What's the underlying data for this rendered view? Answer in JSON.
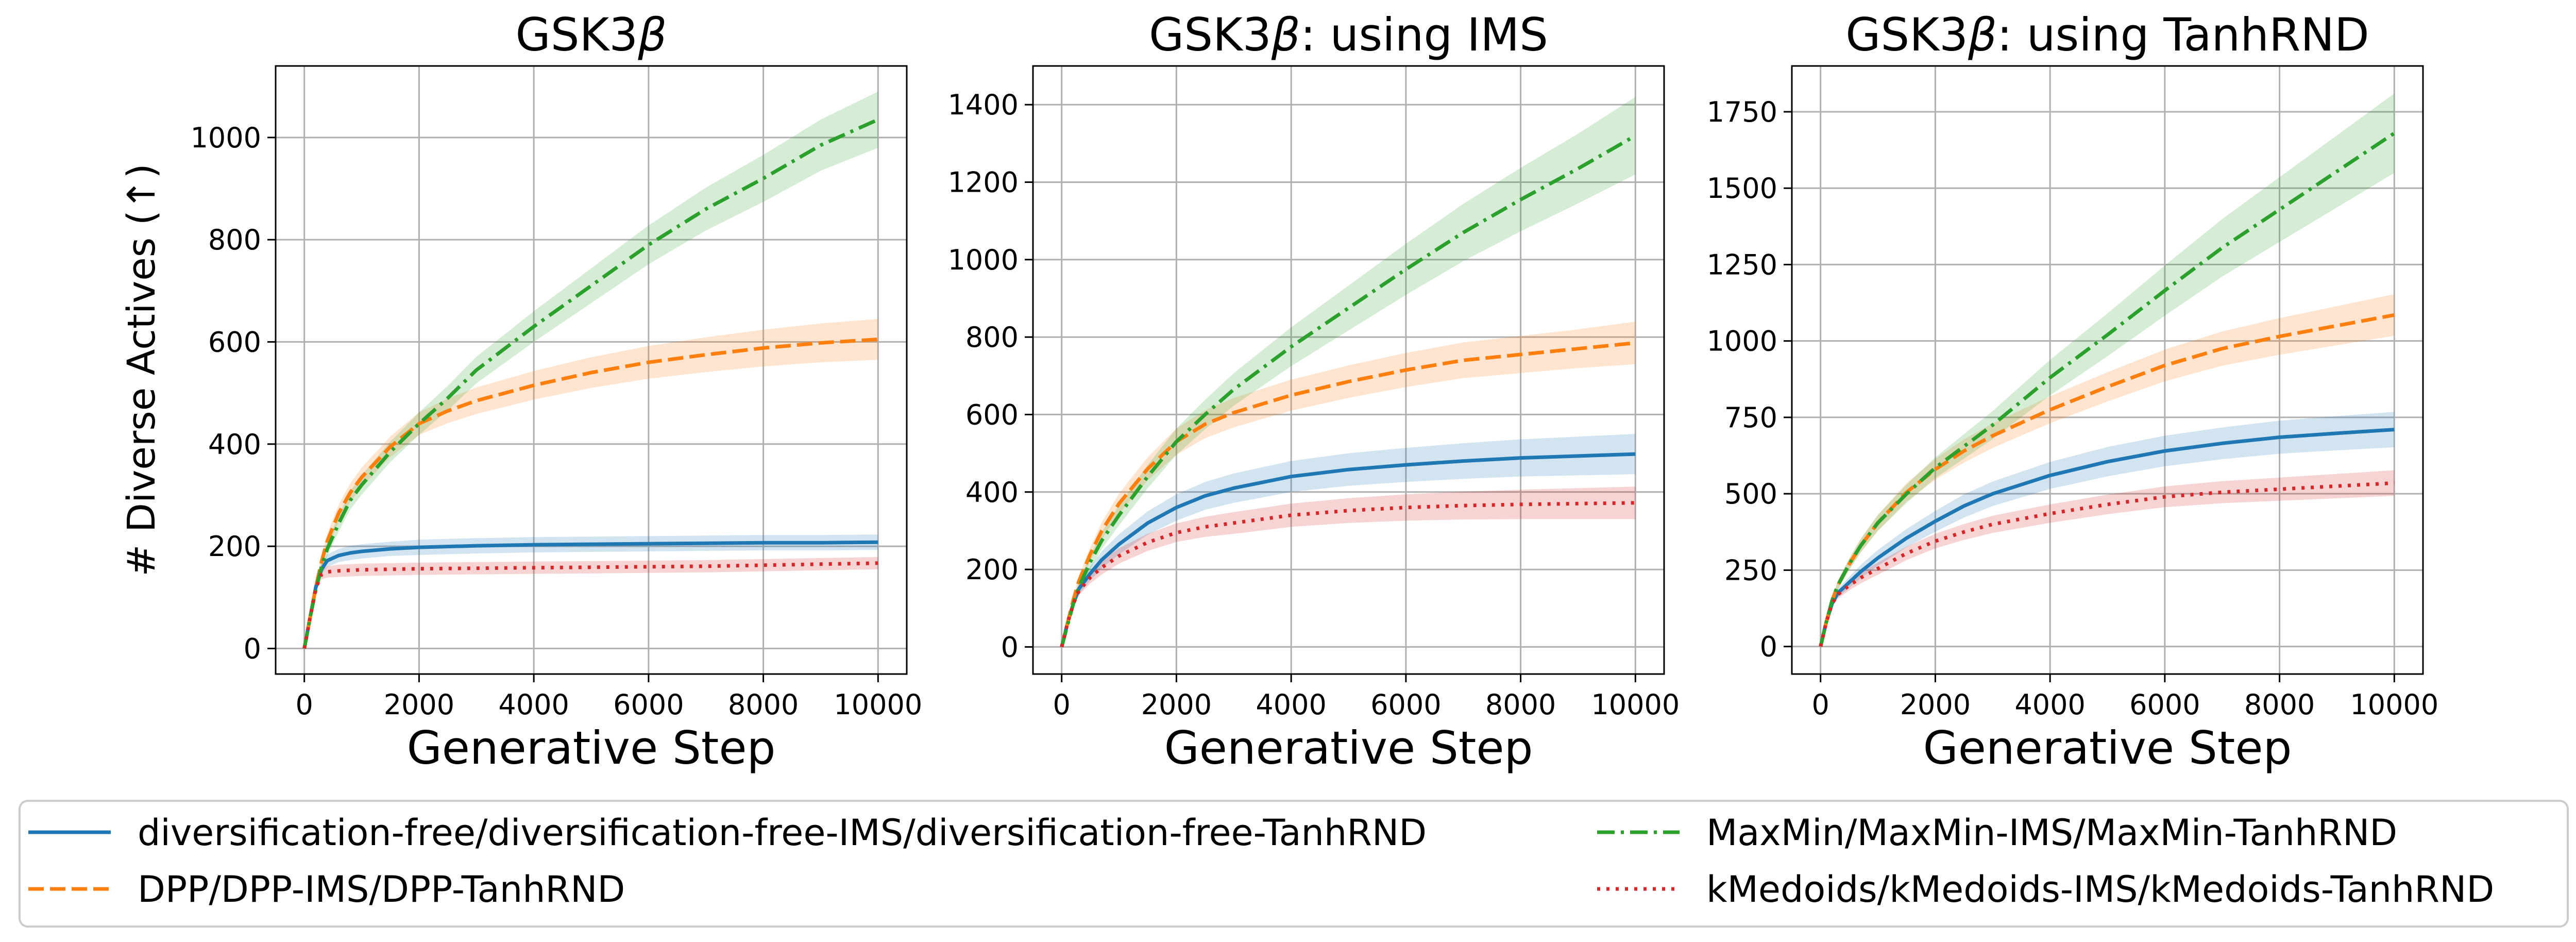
{
  "chart_data": [
    {
      "type": "line",
      "title": "GSK3β",
      "title_parts": [
        "GSK3",
        "β"
      ],
      "xlabel": "Generative Step",
      "ylabel": "# Diverse Actives (↑)",
      "xlim": [
        -500,
        10500
      ],
      "ylim": [
        -50,
        1140
      ],
      "xticks": [
        0,
        2000,
        4000,
        6000,
        8000,
        10000
      ],
      "yticks": [
        0,
        200,
        400,
        600,
        800,
        1000
      ],
      "grid": true,
      "series": [
        {
          "name": "diversification-free",
          "color": "#1f77b4",
          "style": "solid",
          "x": [
            0,
            100,
            200,
            300,
            400,
            600,
            800,
            1000,
            1500,
            2000,
            3000,
            4000,
            5000,
            6000,
            7000,
            8000,
            9000,
            10000
          ],
          "y": [
            0,
            60,
            120,
            155,
            172,
            182,
            187,
            190,
            195,
            198,
            201,
            203,
            204,
            205,
            206,
            207,
            207,
            208
          ],
          "band": [
            0,
            5,
            8,
            10,
            12,
            13,
            14,
            14,
            14,
            15,
            15,
            15,
            15,
            15,
            15,
            15,
            15,
            15
          ]
        },
        {
          "name": "DPP",
          "color": "#ff7f0e",
          "style": "dashed",
          "x": [
            0,
            100,
            200,
            300,
            400,
            600,
            800,
            1000,
            1500,
            2000,
            2500,
            3000,
            4000,
            5000,
            6000,
            7000,
            8000,
            9000,
            10000
          ],
          "y": [
            0,
            60,
            120,
            170,
            210,
            265,
            305,
            335,
            395,
            440,
            465,
            485,
            515,
            540,
            560,
            575,
            588,
            598,
            605
          ],
          "band": [
            0,
            6,
            10,
            13,
            15,
            17,
            18,
            19,
            20,
            22,
            24,
            26,
            28,
            30,
            32,
            34,
            36,
            38,
            40
          ]
        },
        {
          "name": "MaxMin",
          "color": "#2ca02c",
          "style": "dashdot",
          "x": [
            0,
            100,
            200,
            300,
            400,
            600,
            800,
            1000,
            1500,
            2000,
            2500,
            3000,
            4000,
            5000,
            6000,
            7000,
            8000,
            9000,
            10000
          ],
          "y": [
            0,
            60,
            115,
            160,
            195,
            245,
            290,
            320,
            385,
            440,
            490,
            545,
            630,
            710,
            790,
            860,
            920,
            985,
            1035
          ],
          "band": [
            0,
            6,
            10,
            12,
            14,
            16,
            18,
            19,
            20,
            22,
            24,
            26,
            30,
            34,
            38,
            42,
            46,
            50,
            55
          ]
        },
        {
          "name": "kMedoids",
          "color": "#d62728",
          "style": "dotted",
          "x": [
            0,
            100,
            200,
            300,
            400,
            600,
            800,
            1000,
            1500,
            2000,
            3000,
            4000,
            5000,
            6000,
            7000,
            8000,
            9000,
            10000
          ],
          "y": [
            0,
            60,
            118,
            145,
            150,
            152,
            153,
            154,
            155,
            156,
            157,
            158,
            159,
            160,
            161,
            163,
            165,
            167
          ],
          "band": [
            0,
            5,
            8,
            10,
            11,
            12,
            12,
            12,
            12,
            12,
            12,
            12,
            12,
            12,
            12,
            12,
            12,
            12
          ]
        }
      ]
    },
    {
      "type": "line",
      "title": "GSK3β: using IMS",
      "title_parts": [
        "GSK3",
        "β",
        ": using IMS"
      ],
      "xlabel": "Generative Step",
      "ylabel": "",
      "xlim": [
        -500,
        10500
      ],
      "ylim": [
        -70,
        1500
      ],
      "xticks": [
        0,
        2000,
        4000,
        6000,
        8000,
        10000
      ],
      "yticks": [
        0,
        200,
        400,
        600,
        800,
        1000,
        1200,
        1400
      ],
      "grid": true,
      "series": [
        {
          "name": "diversification-free-IMS",
          "color": "#1f77b4",
          "style": "solid",
          "x": [
            0,
            100,
            200,
            300,
            500,
            700,
            1000,
            1500,
            2000,
            2500,
            3000,
            4000,
            5000,
            6000,
            7000,
            8000,
            9000,
            10000
          ],
          "y": [
            0,
            60,
            110,
            150,
            190,
            225,
            265,
            320,
            360,
            390,
            410,
            440,
            458,
            470,
            480,
            488,
            493,
            498
          ],
          "band": [
            0,
            6,
            10,
            14,
            18,
            22,
            26,
            30,
            34,
            36,
            38,
            40,
            42,
            44,
            46,
            48,
            50,
            52
          ]
        },
        {
          "name": "DPP-IMS",
          "color": "#ff7f0e",
          "style": "dashed",
          "x": [
            0,
            100,
            200,
            300,
            500,
            700,
            1000,
            1500,
            2000,
            2500,
            3000,
            4000,
            5000,
            6000,
            7000,
            8000,
            9000,
            10000
          ],
          "y": [
            0,
            60,
            120,
            170,
            240,
            300,
            370,
            460,
            530,
            575,
            605,
            650,
            685,
            715,
            740,
            755,
            770,
            785
          ],
          "band": [
            0,
            6,
            10,
            14,
            18,
            22,
            26,
            30,
            34,
            36,
            38,
            40,
            42,
            44,
            46,
            48,
            50,
            55
          ]
        },
        {
          "name": "MaxMin-IMS",
          "color": "#2ca02c",
          "style": "dashdot",
          "x": [
            0,
            100,
            200,
            300,
            500,
            700,
            1000,
            1500,
            2000,
            2500,
            3000,
            4000,
            5000,
            6000,
            7000,
            8000,
            9000,
            10000
          ],
          "y": [
            0,
            55,
            110,
            155,
            220,
            275,
            340,
            440,
            530,
            600,
            665,
            775,
            875,
            975,
            1070,
            1155,
            1235,
            1320
          ],
          "band": [
            0,
            6,
            10,
            14,
            18,
            22,
            26,
            30,
            34,
            38,
            42,
            50,
            58,
            66,
            74,
            82,
            90,
            100
          ]
        },
        {
          "name": "kMedoids-IMS",
          "color": "#d62728",
          "style": "dotted",
          "x": [
            0,
            100,
            200,
            300,
            500,
            700,
            1000,
            1500,
            2000,
            2500,
            3000,
            4000,
            5000,
            6000,
            7000,
            8000,
            9000,
            10000
          ],
          "y": [
            0,
            60,
            110,
            145,
            180,
            205,
            235,
            270,
            295,
            310,
            320,
            340,
            352,
            360,
            365,
            368,
            370,
            372
          ],
          "band": [
            0,
            5,
            8,
            12,
            16,
            18,
            20,
            22,
            24,
            26,
            28,
            30,
            32,
            34,
            36,
            38,
            40,
            42
          ]
        }
      ]
    },
    {
      "type": "line",
      "title": "GSK3β: using TanhRND",
      "title_parts": [
        "GSK3",
        "β",
        ": using TanhRND"
      ],
      "xlabel": "Generative Step",
      "ylabel": "",
      "xlim": [
        -500,
        10500
      ],
      "ylim": [
        -90,
        1900
      ],
      "xticks": [
        0,
        2000,
        4000,
        6000,
        8000,
        10000
      ],
      "yticks": [
        0,
        250,
        500,
        750,
        1000,
        1250,
        1500,
        1750
      ],
      "grid": true,
      "series": [
        {
          "name": "diversification-free-TanhRND",
          "color": "#1f77b4",
          "style": "solid",
          "x": [
            0,
            100,
            200,
            300,
            500,
            700,
            1000,
            1500,
            2000,
            2500,
            3000,
            4000,
            5000,
            6000,
            7000,
            8000,
            9000,
            10000
          ],
          "y": [
            0,
            80,
            140,
            175,
            210,
            245,
            290,
            355,
            410,
            460,
            500,
            560,
            605,
            640,
            665,
            685,
            698,
            710
          ],
          "band": [
            0,
            6,
            10,
            14,
            18,
            22,
            26,
            30,
            34,
            38,
            40,
            44,
            48,
            50,
            52,
            54,
            56,
            58
          ]
        },
        {
          "name": "DPP-TanhRND",
          "color": "#ff7f0e",
          "style": "dashed",
          "x": [
            0,
            100,
            200,
            300,
            500,
            700,
            1000,
            1500,
            2000,
            2500,
            3000,
            4000,
            5000,
            6000,
            7000,
            8000,
            9000,
            10000
          ],
          "y": [
            0,
            80,
            150,
            200,
            270,
            330,
            405,
            505,
            580,
            640,
            690,
            775,
            850,
            920,
            975,
            1015,
            1050,
            1085
          ],
          "band": [
            0,
            6,
            10,
            14,
            18,
            22,
            26,
            30,
            34,
            38,
            40,
            44,
            48,
            52,
            56,
            60,
            64,
            68
          ]
        },
        {
          "name": "MaxMin-TanhRND",
          "color": "#2ca02c",
          "style": "dashdot",
          "x": [
            0,
            100,
            200,
            300,
            500,
            700,
            1000,
            1500,
            2000,
            2500,
            3000,
            4000,
            5000,
            6000,
            7000,
            8000,
            9000,
            10000
          ],
          "y": [
            0,
            80,
            150,
            200,
            270,
            330,
            405,
            500,
            585,
            655,
            725,
            880,
            1020,
            1165,
            1305,
            1430,
            1555,
            1680
          ],
          "band": [
            0,
            6,
            10,
            14,
            18,
            22,
            26,
            30,
            34,
            40,
            46,
            58,
            70,
            82,
            94,
            106,
            118,
            130
          ]
        },
        {
          "name": "kMedoids-TanhRND",
          "color": "#d62728",
          "style": "dotted",
          "x": [
            0,
            100,
            200,
            300,
            500,
            700,
            1000,
            1500,
            2000,
            2500,
            3000,
            4000,
            5000,
            6000,
            7000,
            8000,
            9000,
            10000
          ],
          "y": [
            0,
            80,
            140,
            170,
            200,
            225,
            255,
            305,
            345,
            375,
            400,
            435,
            465,
            490,
            505,
            515,
            525,
            535
          ],
          "band": [
            0,
            6,
            10,
            14,
            16,
            18,
            20,
            22,
            24,
            26,
            28,
            30,
            32,
            34,
            36,
            38,
            40,
            42
          ]
        }
      ]
    }
  ],
  "legend": {
    "placement": "bottom",
    "entries": [
      {
        "label": "diversification-free/diversification-free-IMS/diversification-free-TanhRND",
        "color": "#1f77b4",
        "style": "solid"
      },
      {
        "label": "DPP/DPP-IMS/DPP-TanhRND",
        "color": "#ff7f0e",
        "style": "dashed"
      },
      {
        "label": "MaxMin/MaxMin-IMS/MaxMin-TanhRND",
        "color": "#2ca02c",
        "style": "dashdot"
      },
      {
        "label": "kMedoids/kMedoids-IMS/kMedoids-TanhRND",
        "color": "#d62728",
        "style": "dotted"
      }
    ]
  }
}
